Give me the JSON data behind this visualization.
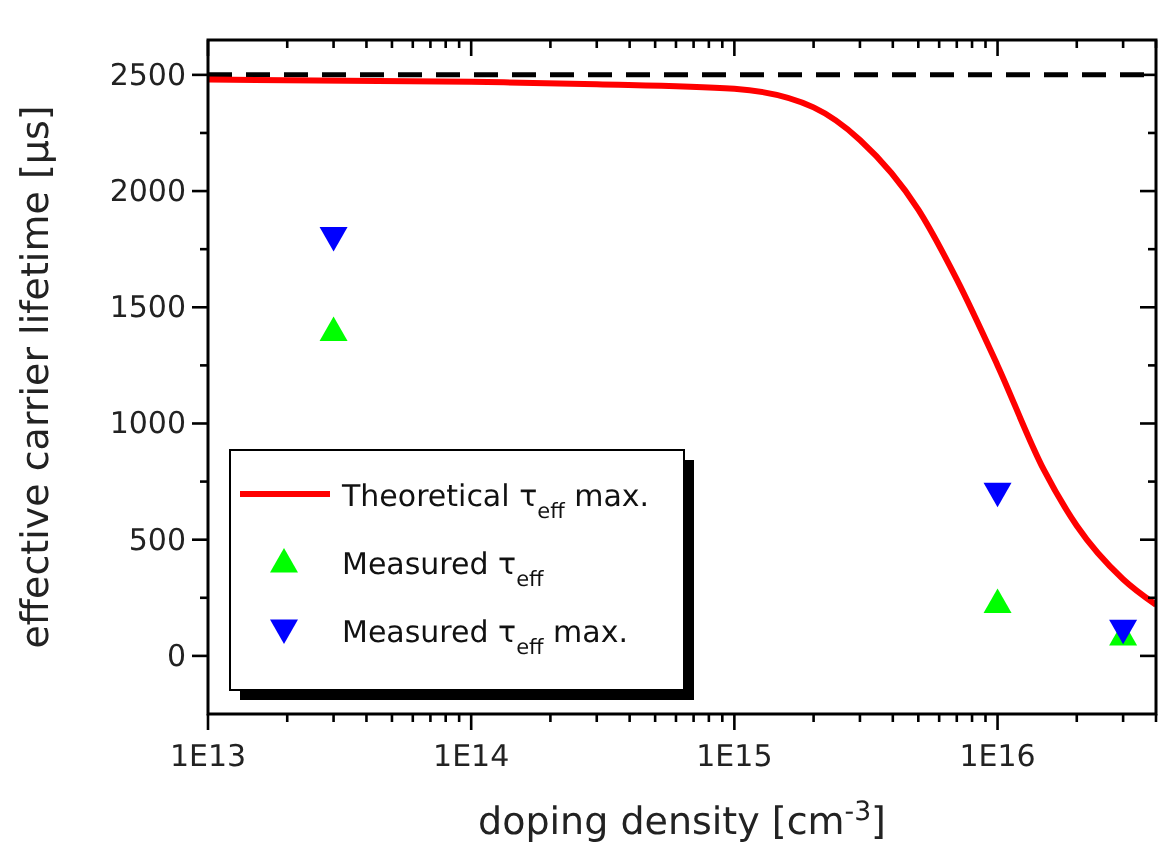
{
  "chart_data": {
    "type": "scatter",
    "xlabel": "doping density [cm$^{-3}$]",
    "ylabel": "effective carrier lifetime [µs]",
    "log": "x",
    "xlim": [
      10000000000000.0,
      4e+16
    ],
    "ylim": [
      -250,
      2650
    ],
    "xticks": [
      {
        "value": 10000000000000.0,
        "label": "1E13"
      },
      {
        "value": 20000000000000.0,
        "label": null
      },
      {
        "value": 30000000000000.0,
        "label": null
      },
      {
        "value": 40000000000000.0,
        "label": null
      },
      {
        "value": 50000000000000.0,
        "label": null
      },
      {
        "value": 60000000000000.0,
        "label": null
      },
      {
        "value": 70000000000000.0,
        "label": null
      },
      {
        "value": 80000000000000.0,
        "label": null
      },
      {
        "value": 90000000000000.0,
        "label": null
      },
      {
        "value": 100000000000000.0,
        "label": "1E14"
      },
      {
        "value": 200000000000000.0,
        "label": null
      },
      {
        "value": 300000000000000.0,
        "label": null
      },
      {
        "value": 400000000000000.0,
        "label": null
      },
      {
        "value": 500000000000000.0,
        "label": null
      },
      {
        "value": 600000000000000.0,
        "label": null
      },
      {
        "value": 700000000000000.0,
        "label": null
      },
      {
        "value": 800000000000000.0,
        "label": null
      },
      {
        "value": 900000000000000.0,
        "label": null
      },
      {
        "value": 1000000000000000.0,
        "label": "1E15"
      },
      {
        "value": 2000000000000000.0,
        "label": null
      },
      {
        "value": 3000000000000000.0,
        "label": null
      },
      {
        "value": 4000000000000000.0,
        "label": null
      },
      {
        "value": 5000000000000000.0,
        "label": null
      },
      {
        "value": 6000000000000000.0,
        "label": null
      },
      {
        "value": 7000000000000000.0,
        "label": null
      },
      {
        "value": 8000000000000000.0,
        "label": null
      },
      {
        "value": 9000000000000000.0,
        "label": null
      },
      {
        "value": 1e+16,
        "label": "1E16"
      },
      {
        "value": 2e+16,
        "label": null
      },
      {
        "value": 3e+16,
        "label": null
      },
      {
        "value": 4e+16,
        "label": null
      }
    ],
    "yticks": [
      0,
      {
        "value": 250,
        "label": null
      },
      500,
      {
        "value": 750,
        "label": null
      },
      1000,
      {
        "value": 1250,
        "label": null
      },
      1500,
      {
        "value": 1750,
        "label": null
      },
      2000,
      {
        "value": 2250,
        "label": null
      },
      2500
    ],
    "ref_lines": [
      {
        "axis": "y",
        "value": 2500,
        "color": "#000000",
        "line_style": "dashed"
      }
    ],
    "legend": "bottom left",
    "grid": false,
    "series": [
      {
        "name": "Theoretical τ$_{eff}$ max.",
        "type": "line",
        "color": "#ff0000",
        "marker": "none",
        "line_style": "solid",
        "x": [
          10000000000000.0,
          100000000000000.0,
          300000000000000.0,
          1000000000000000.0,
          2000000000000000.0,
          3000000000000000.0,
          5000000000000000.0,
          7000000000000000.0,
          1e+16,
          1.5e+16,
          2e+16,
          3e+16,
          4e+16
        ],
        "values": [
          2480,
          2470,
          2460,
          2440,
          2360,
          2220,
          1920,
          1620,
          1250,
          800,
          560,
          330,
          220
        ]
      },
      {
        "name": "Measured τ$_{eff}$",
        "color": "#00ff00",
        "marker": "triangle",
        "x": [
          30000000000000.0,
          1e+16,
          3e+16
        ],
        "values": [
          1400,
          230,
          90
        ]
      },
      {
        "name": "Measured τ$_{eff}$ max.",
        "color": "#0000ff",
        "marker": "triangle-down",
        "x": [
          30000000000000.0,
          1e+16,
          3e+16
        ],
        "values": [
          1800,
          700,
          110
        ]
      }
    ]
  }
}
